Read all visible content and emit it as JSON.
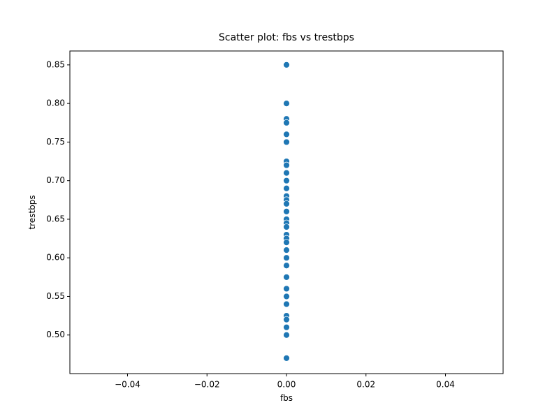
{
  "chart_data": {
    "type": "scatter",
    "title": "Scatter plot: fbs vs trestbps",
    "x_label": "fbs",
    "y_label": "trestbps",
    "color": "#1f77b4",
    "x": [
      0,
      0,
      0,
      0,
      0,
      0,
      0,
      0,
      0,
      0,
      0,
      0,
      0,
      0,
      0,
      0,
      0,
      0,
      0,
      0,
      0,
      0,
      0,
      0,
      0,
      0,
      0,
      0,
      0,
      0,
      0,
      0,
      0
    ],
    "y": [
      0.85,
      0.8,
      0.78,
      0.775,
      0.76,
      0.75,
      0.725,
      0.72,
      0.71,
      0.7,
      0.69,
      0.68,
      0.675,
      0.67,
      0.66,
      0.65,
      0.645,
      0.64,
      0.63,
      0.625,
      0.62,
      0.61,
      0.6,
      0.59,
      0.575,
      0.56,
      0.55,
      0.54,
      0.525,
      0.52,
      0.51,
      0.5,
      0.47
    ],
    "xlim": [
      -0.0545,
      0.0545
    ],
    "xticks": [
      {
        "value": -0.04,
        "label": "−0.04"
      },
      {
        "value": -0.02,
        "label": "−0.02"
      },
      {
        "value": 0,
        "label": "0.00"
      },
      0.02,
      0.04
    ],
    "ylim": [
      0.45,
      0.868
    ],
    "yticks": [
      {
        "value": 0.5,
        "label": "0.50"
      },
      0.55,
      {
        "value": 0.6,
        "label": "0.60"
      },
      0.65,
      {
        "value": 0.7,
        "label": "0.70"
      },
      0.75,
      {
        "value": 0.8,
        "label": "0.80"
      },
      0.85
    ]
  }
}
